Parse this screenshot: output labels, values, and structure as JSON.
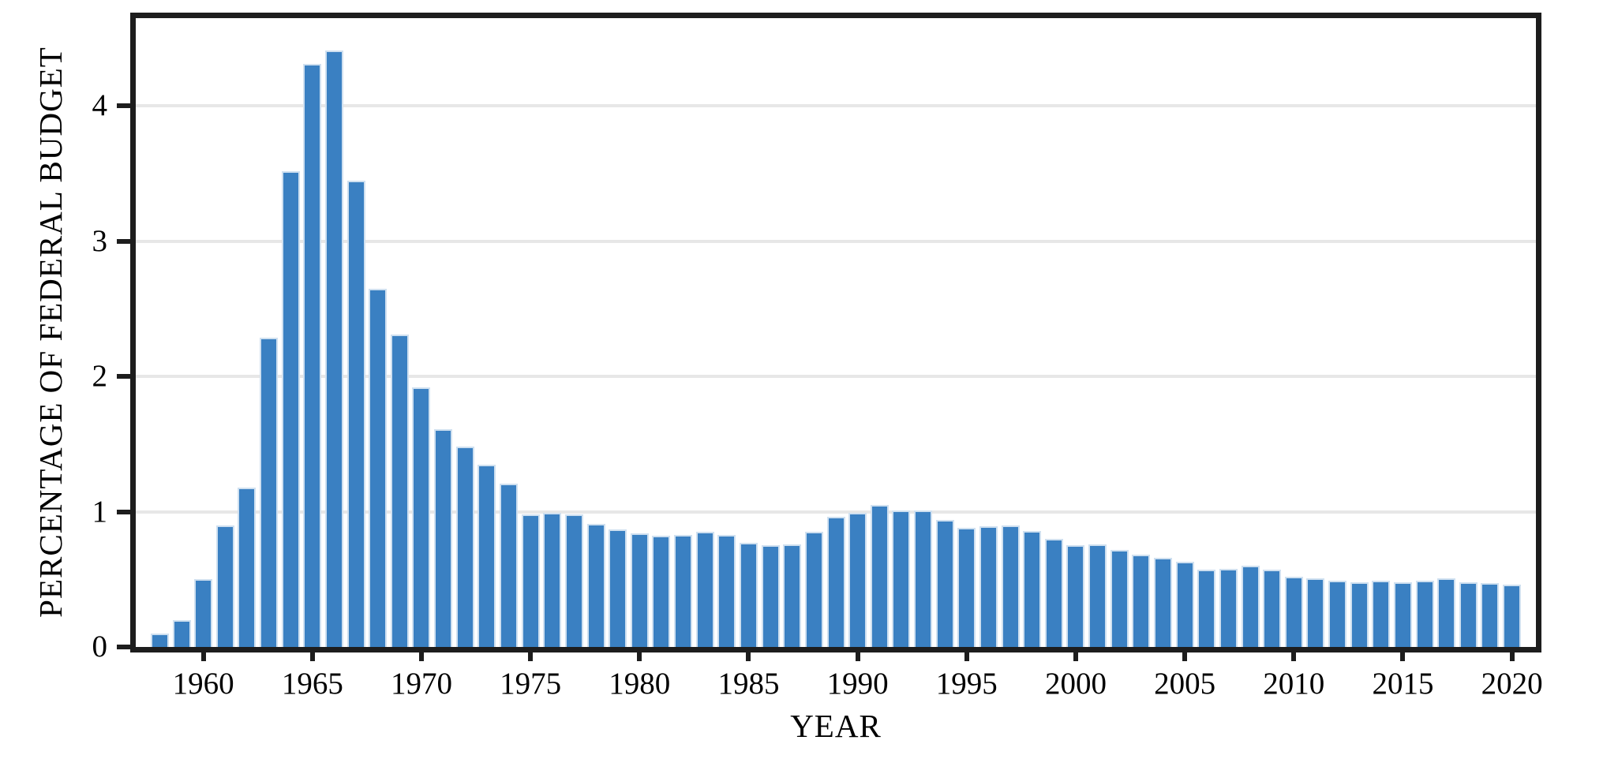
{
  "chart_data": {
    "type": "bar",
    "title": "",
    "xlabel": "YEAR",
    "ylabel": "PERCENTAGE OF FEDERAL BUDGET",
    "categories": [
      1958,
      1959,
      1960,
      1961,
      1962,
      1963,
      1964,
      1965,
      1966,
      1967,
      1968,
      1969,
      1970,
      1971,
      1972,
      1973,
      1974,
      1975,
      1976,
      1977,
      1978,
      1979,
      1980,
      1981,
      1982,
      1983,
      1984,
      1985,
      1986,
      1987,
      1988,
      1989,
      1990,
      1991,
      1992,
      1993,
      1994,
      1995,
      1996,
      1997,
      1998,
      1999,
      2000,
      2001,
      2002,
      2003,
      2004,
      2005,
      2006,
      2007,
      2008,
      2009,
      2010,
      2011,
      2012,
      2013,
      2014,
      2015,
      2016,
      2017,
      2018,
      2019,
      2020
    ],
    "values": [
      0.1,
      0.2,
      0.5,
      0.9,
      1.18,
      2.29,
      3.52,
      4.31,
      4.41,
      3.45,
      2.65,
      2.31,
      1.92,
      1.61,
      1.48,
      1.35,
      1.21,
      0.98,
      0.99,
      0.98,
      0.91,
      0.87,
      0.84,
      0.82,
      0.83,
      0.85,
      0.83,
      0.77,
      0.75,
      0.76,
      0.85,
      0.96,
      0.99,
      1.05,
      1.01,
      1.01,
      0.94,
      0.88,
      0.89,
      0.9,
      0.86,
      0.8,
      0.75,
      0.76,
      0.72,
      0.68,
      0.66,
      0.63,
      0.57,
      0.58,
      0.6,
      0.57,
      0.52,
      0.51,
      0.49,
      0.48,
      0.49,
      0.48,
      0.49,
      0.51,
      0.48,
      0.47,
      0.46
    ],
    "xticks": [
      1960,
      1965,
      1970,
      1975,
      1980,
      1985,
      1990,
      1995,
      2000,
      2005,
      2010,
      2015,
      2020
    ],
    "yticks": [
      0,
      1,
      2,
      3,
      4
    ],
    "ylim": [
      0,
      4.65
    ],
    "grid": "horizontal-on",
    "legend": "none",
    "colors": {
      "bar": "#3a80c2",
      "bar_edge": "#cfe0f0",
      "grid": "#e7e7e7",
      "spine": "#1d1d1d",
      "background": "#ffffff",
      "text": "#000000"
    }
  }
}
